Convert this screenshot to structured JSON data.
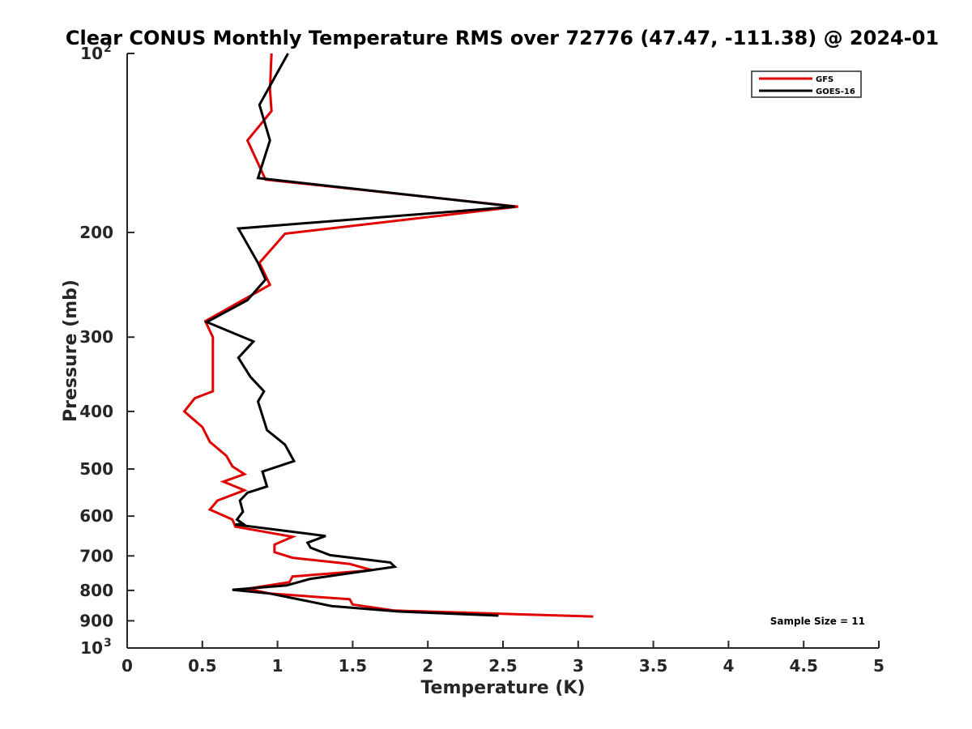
{
  "chart_data": {
    "type": "line",
    "title": "Clear CONUS Monthly Temperature RMS over 72776 (47.47, -111.38) @ 2024-01",
    "xlabel": "Temperature (K)",
    "ylabel": "Pressure (mb)",
    "xlim": [
      0,
      5
    ],
    "ylim": [
      100,
      1000
    ],
    "y_scale": "log",
    "y_reversed": true,
    "grid": false,
    "legend_position": "top-right",
    "x_ticks": [
      "0",
      "0.5",
      "1",
      "1.5",
      "2",
      "2.5",
      "3",
      "3.5",
      "4",
      "4.5",
      "5"
    ],
    "y_ticks": [
      {
        "value": 100,
        "base": "10",
        "exp": "2"
      },
      {
        "value": 200,
        "label": "200"
      },
      {
        "value": 300,
        "label": "300"
      },
      {
        "value": 400,
        "label": "400"
      },
      {
        "value": 500,
        "label": "500"
      },
      {
        "value": 600,
        "label": "600"
      },
      {
        "value": 700,
        "label": "700"
      },
      {
        "value": 800,
        "label": "800"
      },
      {
        "value": 900,
        "label": "900"
      },
      {
        "value": 1000,
        "base": "10",
        "exp": "3"
      }
    ],
    "annotation": "Sample Size = 11",
    "series": [
      {
        "name": "GFS",
        "color": "#e00000",
        "points": [
          [
            0.96,
            100
          ],
          [
            0.95,
            115
          ],
          [
            0.96,
            125
          ],
          [
            0.8,
            140
          ],
          [
            0.92,
            163
          ],
          [
            2.6,
            181
          ],
          [
            1.05,
            201
          ],
          [
            0.88,
            225
          ],
          [
            0.95,
            245
          ],
          [
            0.52,
            282
          ],
          [
            0.57,
            300
          ],
          [
            0.57,
            330
          ],
          [
            0.57,
            370
          ],
          [
            0.45,
            380
          ],
          [
            0.38,
            400
          ],
          [
            0.5,
            425
          ],
          [
            0.55,
            450
          ],
          [
            0.66,
            475
          ],
          [
            0.7,
            495
          ],
          [
            0.78,
            510
          ],
          [
            0.64,
            525
          ],
          [
            0.78,
            543
          ],
          [
            0.6,
            565
          ],
          [
            0.55,
            585
          ],
          [
            0.7,
            608
          ],
          [
            0.72,
            625
          ],
          [
            1.1,
            650
          ],
          [
            0.98,
            670
          ],
          [
            0.98,
            690
          ],
          [
            1.1,
            705
          ],
          [
            1.48,
            722
          ],
          [
            1.63,
            740
          ],
          [
            1.1,
            758
          ],
          [
            1.08,
            775
          ],
          [
            0.8,
            795
          ],
          [
            0.95,
            810
          ],
          [
            1.48,
            828
          ],
          [
            1.5,
            845
          ],
          [
            1.78,
            865
          ],
          [
            3.1,
            885
          ]
        ]
      },
      {
        "name": "GOES-16",
        "color": "#000000",
        "points": [
          [
            1.07,
            100
          ],
          [
            0.88,
            122
          ],
          [
            0.95,
            140
          ],
          [
            0.87,
            162
          ],
          [
            2.58,
            181
          ],
          [
            0.74,
            197
          ],
          [
            0.87,
            225
          ],
          [
            0.92,
            240
          ],
          [
            0.8,
            260
          ],
          [
            0.53,
            283
          ],
          [
            0.84,
            305
          ],
          [
            0.74,
            325
          ],
          [
            0.82,
            350
          ],
          [
            0.91,
            370
          ],
          [
            0.87,
            385
          ],
          [
            0.93,
            430
          ],
          [
            1.05,
            455
          ],
          [
            1.11,
            485
          ],
          [
            0.9,
            505
          ],
          [
            0.93,
            535
          ],
          [
            0.8,
            548
          ],
          [
            0.75,
            565
          ],
          [
            0.77,
            590
          ],
          [
            0.73,
            608
          ],
          [
            0.77,
            618
          ],
          [
            0.72,
            620
          ],
          [
            1.32,
            648
          ],
          [
            1.2,
            665
          ],
          [
            1.22,
            678
          ],
          [
            1.35,
            698
          ],
          [
            1.75,
            718
          ],
          [
            1.78,
            730
          ],
          [
            1.22,
            765
          ],
          [
            1.06,
            785
          ],
          [
            0.7,
            798
          ],
          [
            0.95,
            810
          ],
          [
            1.16,
            830
          ],
          [
            1.36,
            850
          ],
          [
            1.8,
            868
          ],
          [
            2.47,
            882
          ]
        ]
      }
    ]
  }
}
